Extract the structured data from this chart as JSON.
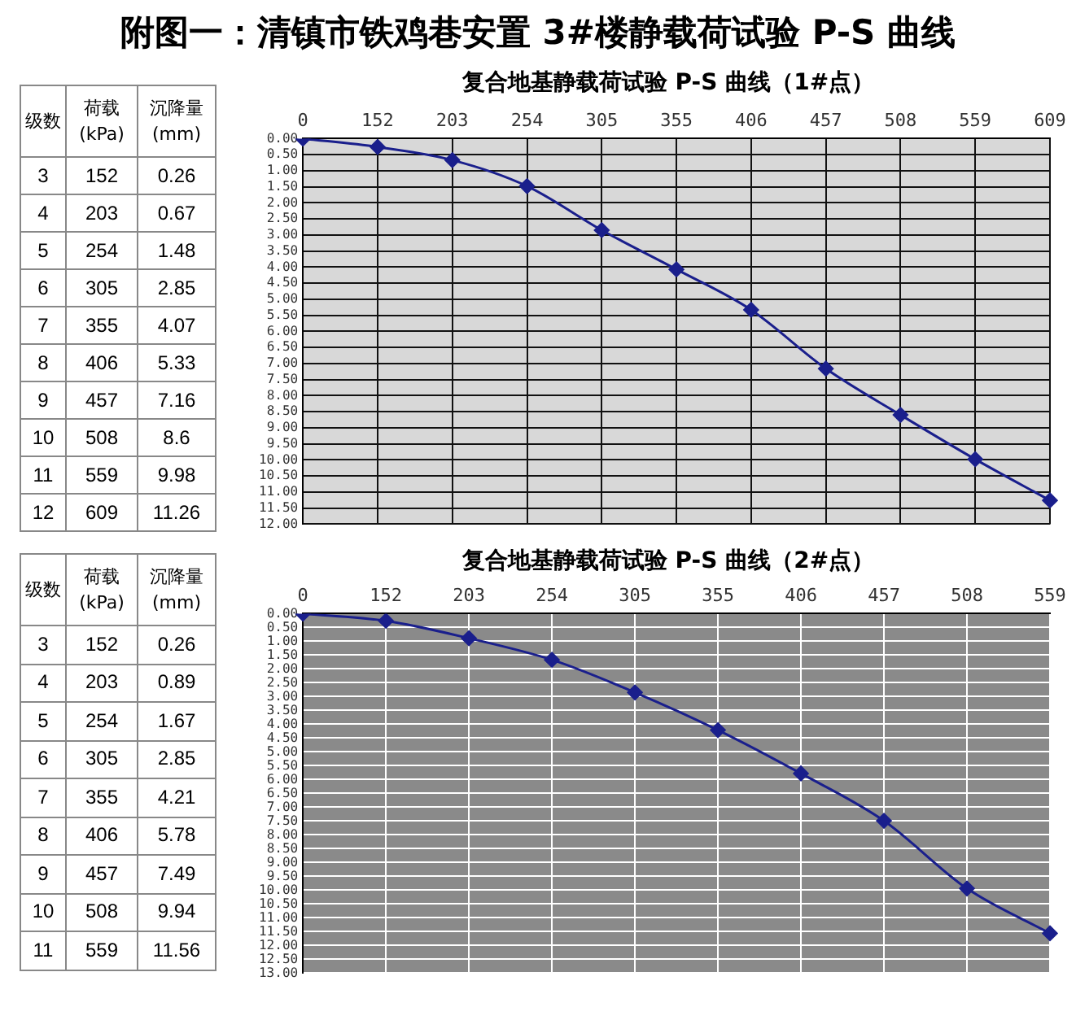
{
  "chart_data": [
    {
      "type": "line",
      "title": "附图一：清镇市铁鸡巷安置 3#楼静载荷试验 P-S 曲线",
      "subtitle": "复合地基静载荷试验 P-S 曲线（1#点）",
      "categories": [
        "0",
        "152",
        "203",
        "254",
        "305",
        "355",
        "406",
        "457",
        "508",
        "559",
        "609"
      ],
      "series": [
        {
          "color": "#1a1f8c",
          "values": [
            0,
            0.26,
            0.67,
            1.48,
            2.85,
            4.07,
            5.33,
            7.16,
            8.6,
            9.98,
            11.26
          ]
        }
      ],
      "value_labels": [
        null,
        "0.26",
        "0.67",
        "1.48",
        "2.85",
        "4.07",
        "5.33",
        "7.16",
        "8.6",
        "9.98",
        "11.26"
      ],
      "annotations": [
        "级数",
        "荷载 (kPa)",
        "沉降量 (mm)",
        "3",
        "4",
        "5",
        "6",
        "7",
        "8",
        "9",
        "10",
        "11",
        "12"
      ],
      "ylim": [
        12,
        0
      ],
      "yticks": [
        {
          "value": 0,
          "label": "0.00"
        },
        {
          "value": 0.5,
          "label": "0.50"
        },
        {
          "value": 1,
          "label": "1.00"
        },
        {
          "value": 1.5,
          "label": "1.50"
        },
        {
          "value": 2,
          "label": "2.00"
        },
        {
          "value": 2.5,
          "label": "2.50"
        },
        {
          "value": 3,
          "label": "3.00"
        },
        {
          "value": 3.5,
          "label": "3.50"
        },
        {
          "value": 4,
          "label": "4.00"
        },
        {
          "value": 4.5,
          "label": "4.50"
        },
        {
          "value": 5,
          "label": "5.00"
        },
        {
          "value": 5.5,
          "label": "5.50"
        },
        {
          "value": 6,
          "label": "6.00"
        },
        {
          "value": 6.5,
          "label": "6.50"
        },
        {
          "value": 7,
          "label": "7.00"
        },
        {
          "value": 7.5,
          "label": "7.50"
        },
        {
          "value": 8,
          "label": "8.00"
        },
        {
          "value": 8.5,
          "label": "8.50"
        },
        {
          "value": 9,
          "label": "9.00"
        },
        {
          "value": 9.5,
          "label": "9.50"
        },
        {
          "value": 10,
          "label": "10.00"
        },
        {
          "value": 10.5,
          "label": "10.50"
        },
        {
          "value": 11,
          "label": "11.00"
        },
        {
          "value": 11.5,
          "label": "11.50"
        },
        {
          "value": 12,
          "label": "12.00"
        }
      ],
      "grid": true,
      "legend": false,
      "marker": "diamond",
      "line_style": "solid"
    },
    {
      "type": "line",
      "title": "复合地基静载荷试验 P-S 曲线（2#点）",
      "categories": [
        "0",
        "152",
        "203",
        "254",
        "305",
        "355",
        "406",
        "457",
        "508",
        "559"
      ],
      "series": [
        {
          "color": "#1a1f8c",
          "values": [
            0,
            0.26,
            0.89,
            1.67,
            2.85,
            4.21,
            5.78,
            7.49,
            9.94,
            11.56
          ]
        }
      ],
      "value_labels": [
        null,
        "0.26",
        "0.89",
        "1.67",
        "2.85",
        "4.21",
        "5.78",
        "7.49",
        "9.94",
        "11.56"
      ],
      "annotations": [
        "级数",
        "荷载 (kPa)",
        "沉降量 (mm)",
        "3",
        "4",
        "5",
        "6",
        "7",
        "8",
        "9",
        "10",
        "11"
      ],
      "ylim": [
        13,
        0
      ],
      "yticks": [
        {
          "value": 0,
          "label": "0.00"
        },
        {
          "value": 0.5,
          "label": "0.50"
        },
        {
          "value": 1,
          "label": "1.00"
        },
        {
          "value": 1.5,
          "label": "1.50"
        },
        {
          "value": 2,
          "label": "2.00"
        },
        {
          "value": 2.5,
          "label": "2.50"
        },
        {
          "value": 3,
          "label": "3.00"
        },
        {
          "value": 3.5,
          "label": "3.50"
        },
        {
          "value": 4,
          "label": "4.00"
        },
        {
          "value": 4.5,
          "label": "4.50"
        },
        {
          "value": 5,
          "label": "5.00"
        },
        {
          "value": 5.5,
          "label": "5.50"
        },
        {
          "value": 6,
          "label": "6.00"
        },
        {
          "value": 6.5,
          "label": "6.50"
        },
        {
          "value": 7,
          "label": "7.00"
        },
        {
          "value": 7.5,
          "label": "7.50"
        },
        {
          "value": 8,
          "label": "8.00"
        },
        {
          "value": 8.5,
          "label": "8.50"
        },
        {
          "value": 9,
          "label": "9.00"
        },
        {
          "value": 9.5,
          "label": "9.50"
        },
        {
          "value": 10,
          "label": "10.00"
        },
        {
          "value": 10.5,
          "label": "10.50"
        },
        {
          "value": 11,
          "label": "11.00"
        },
        {
          "value": 11.5,
          "label": "11.50"
        },
        {
          "value": 12,
          "label": "12.00"
        },
        {
          "value": 12.5,
          "label": "12.50"
        },
        {
          "value": 13,
          "label": "13.00"
        }
      ],
      "grid": true,
      "legend": false,
      "marker": "diamond",
      "line_style": "solid"
    }
  ]
}
